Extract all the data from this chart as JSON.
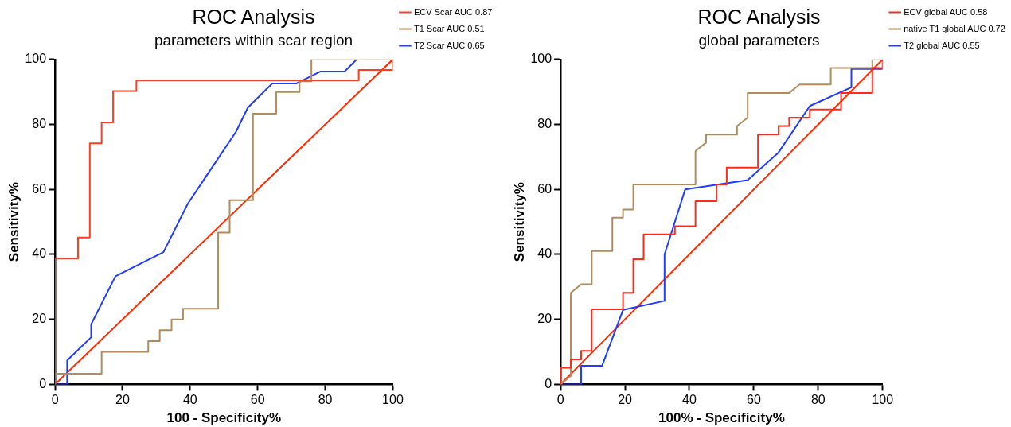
{
  "chart_data": [
    {
      "type": "line",
      "title": "ROC Analysis",
      "subtitle": "parameters within scar region",
      "xlabel": "100 - Specificity%",
      "ylabel": "Sensitivity%",
      "xlim": [
        0,
        100
      ],
      "ylim": [
        0,
        100
      ],
      "xticks": [
        0,
        20,
        40,
        60,
        80,
        100
      ],
      "yticks": [
        0,
        20,
        40,
        60,
        80,
        100
      ],
      "grid": false,
      "legend": "top right",
      "marker": "none",
      "line_style": "solid",
      "series": [
        {
          "name": "ECV Scar AUC 0.87",
          "color": "#ff3d22",
          "x": [
            0,
            0,
            6.8,
            6.8,
            10.3,
            10.3,
            13.8,
            13.8,
            17.2,
            17.2,
            24.1,
            24.1,
            89.9,
            89.9,
            100,
            100
          ],
          "values": [
            0,
            38.7,
            38.7,
            45.2,
            45.2,
            74.2,
            74.2,
            80.6,
            80.6,
            90.3,
            90.3,
            93.5,
            93.5,
            96.8,
            96.8,
            100
          ]
        },
        {
          "name": "T1 Scar AUC 0.51",
          "color": "#b08d5c",
          "x": [
            0,
            0,
            13.8,
            13.8,
            27.6,
            27.6,
            31,
            31,
            34.5,
            34.5,
            37.9,
            37.9,
            48.3,
            48.3,
            51.7,
            51.7,
            58.6,
            58.6,
            65.5,
            65.5,
            72.4,
            72.4,
            75.9,
            75.9,
            100
          ],
          "values": [
            0,
            3.3,
            3.3,
            10,
            10,
            13.3,
            13.3,
            16.7,
            16.7,
            20,
            20,
            23.3,
            23.3,
            46.7,
            46.7,
            56.7,
            56.7,
            83.3,
            83.3,
            90,
            90,
            93.3,
            93.3,
            100,
            100
          ]
        },
        {
          "name": "T2 Scar AUC 0.65",
          "color": "#1f3cff",
          "x": [
            0,
            3.6,
            3.6,
            10.7,
            10.7,
            17.9,
            32.1,
            39.3,
            53.6,
            57.1,
            64.3,
            71.4,
            78.6,
            85.7,
            89.3
          ],
          "values": [
            0,
            0,
            7.4,
            14.5,
            18.5,
            33.3,
            40.7,
            55.6,
            77.8,
            85.2,
            92.6,
            92.6,
            96.3,
            96.3,
            100
          ]
        },
        {
          "color": "#ff2a00",
          "x": [
            0,
            100
          ],
          "values": [
            0,
            100
          ]
        }
      ]
    },
    {
      "type": "line",
      "title": "ROC Analysis",
      "subtitle": "global parameters",
      "xlabel": "100% - Specificity%",
      "ylabel": "Sensitivity%",
      "xlim": [
        0,
        100
      ],
      "ylim": [
        0,
        100
      ],
      "xticks": [
        0,
        20,
        40,
        60,
        80,
        100
      ],
      "yticks": [
        0,
        20,
        40,
        60,
        80,
        100
      ],
      "grid": false,
      "legend": "top right",
      "marker": "none",
      "line_style": "solid",
      "series": [
        {
          "name": "ECV global AUC 0.58",
          "color": "#ff2a1a",
          "x": [
            0,
            0,
            3.2,
            3.2,
            6.4,
            6.4,
            9.7,
            9.7,
            19.4,
            19.4,
            22.6,
            22.6,
            25.8,
            25.8,
            35.5,
            35.5,
            41.9,
            41.9,
            48.4,
            48.4,
            51.6,
            51.6,
            61.3,
            61.3,
            67.7,
            67.7,
            71,
            71,
            77.4,
            77.4,
            87.1,
            87.1,
            96.8,
            96.8,
            100,
            100
          ],
          "values": [
            0,
            5.1,
            5.1,
            7.7,
            7.7,
            10.3,
            10.3,
            23.1,
            23.1,
            28.2,
            28.2,
            38.5,
            38.5,
            46.2,
            46.2,
            48.7,
            48.7,
            56.4,
            56.4,
            61.5,
            61.5,
            66.7,
            66.7,
            76.9,
            76.9,
            79.5,
            79.5,
            82.1,
            82.1,
            84.6,
            84.6,
            89.7,
            89.7,
            97.4,
            97.4,
            100
          ]
        },
        {
          "name": "native T1 global AUC 0.72",
          "color": "#b08d5c",
          "x": [
            0,
            3.2,
            3.2,
            6.4,
            9.7,
            9.7,
            16.1,
            16.1,
            19.4,
            19.4,
            22.6,
            22.6,
            41.9,
            41.9,
            45.2,
            45.2,
            54.8,
            54.8,
            58.1,
            58.1,
            71,
            74.2,
            83.9,
            83.9,
            96.8,
            96.8,
            100
          ],
          "values": [
            0,
            2.6,
            28.2,
            30.8,
            30.8,
            41,
            41,
            51.3,
            51.3,
            53.8,
            53.8,
            61.5,
            61.5,
            71.8,
            74.4,
            76.9,
            76.9,
            79.5,
            82.1,
            89.7,
            89.7,
            92.3,
            92.3,
            97.4,
            97.4,
            100,
            100
          ]
        },
        {
          "name": "T2 global AUC 0.55",
          "color": "#1f3cff",
          "x": [
            0,
            6.4,
            6.4,
            12.9,
            19.4,
            32.3,
            32.3,
            38.7,
            58.1,
            67.7,
            77.4,
            90.3,
            90.3,
            100
          ],
          "values": [
            0,
            0,
            5.7,
            5.7,
            22.9,
            25.7,
            40,
            60,
            62.9,
            71.4,
            85.7,
            91.4,
            97.1,
            97.1
          ]
        },
        {
          "color": "#ff2a00",
          "x": [
            0,
            100
          ],
          "values": [
            0,
            100
          ]
        }
      ]
    }
  ]
}
